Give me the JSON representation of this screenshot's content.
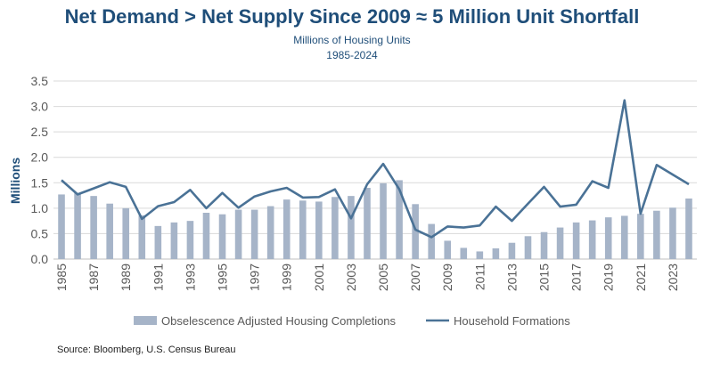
{
  "chart_data": {
    "type": "bar",
    "title": "Net Demand > Net Supply Since 2009 ≈ 5 Million Unit Shortfall",
    "subtitle": "Millions of Housing Units",
    "subtitle2": "1985-2024",
    "ylabel": "Millions",
    "source": "Source: Bloomberg, U.S. Census Bureau",
    "ylim": [
      0,
      3.5
    ],
    "yticks": [
      "0.0",
      "0.5",
      "1.0",
      "1.5",
      "2.0",
      "2.5",
      "3.0",
      "3.5"
    ],
    "grid": true,
    "legend_position": "bottom",
    "x": [
      1985,
      1986,
      1987,
      1988,
      1989,
      1990,
      1991,
      1992,
      1993,
      1994,
      1995,
      1996,
      1997,
      1998,
      1999,
      2000,
      2001,
      2002,
      2003,
      2004,
      2005,
      2006,
      2007,
      2008,
      2009,
      2010,
      2011,
      2012,
      2013,
      2014,
      2015,
      2016,
      2017,
      2018,
      2019,
      2020,
      2021,
      2022,
      2023,
      2024
    ],
    "xtick_labels": [
      "1985",
      "1987",
      "1989",
      "1991",
      "1993",
      "1995",
      "1997",
      "1999",
      "2001",
      "2003",
      "2005",
      "2007",
      "2009",
      "2011",
      "2013",
      "2015",
      "2017",
      "2019",
      "2021",
      "2023"
    ],
    "series": [
      {
        "name": "Obselescence Adjusted Housing Completions",
        "type": "bar",
        "color": "#a6b4c8",
        "values": [
          1.27,
          1.3,
          1.24,
          1.09,
          1.0,
          0.86,
          0.65,
          0.72,
          0.75,
          0.91,
          0.88,
          0.97,
          0.97,
          1.04,
          1.17,
          1.15,
          1.13,
          1.22,
          1.24,
          1.4,
          1.49,
          1.55,
          1.08,
          0.69,
          0.36,
          0.22,
          0.15,
          0.21,
          0.32,
          0.45,
          0.53,
          0.62,
          0.72,
          0.76,
          0.82,
          0.85,
          0.89,
          0.95,
          1.01,
          1.19
        ]
      },
      {
        "name": "Household Formations",
        "type": "line",
        "color": "#4a7296",
        "values": [
          1.55,
          1.27,
          1.39,
          1.51,
          1.42,
          0.79,
          1.04,
          1.12,
          1.36,
          1.0,
          1.3,
          1.01,
          1.23,
          1.33,
          1.4,
          1.21,
          1.22,
          1.37,
          0.8,
          1.47,
          1.87,
          1.37,
          0.58,
          0.43,
          0.64,
          0.62,
          0.66,
          1.03,
          0.75,
          1.09,
          1.42,
          1.03,
          1.07,
          1.53,
          1.4,
          3.12,
          0.89,
          1.85,
          1.66,
          1.47
        ]
      }
    ]
  }
}
